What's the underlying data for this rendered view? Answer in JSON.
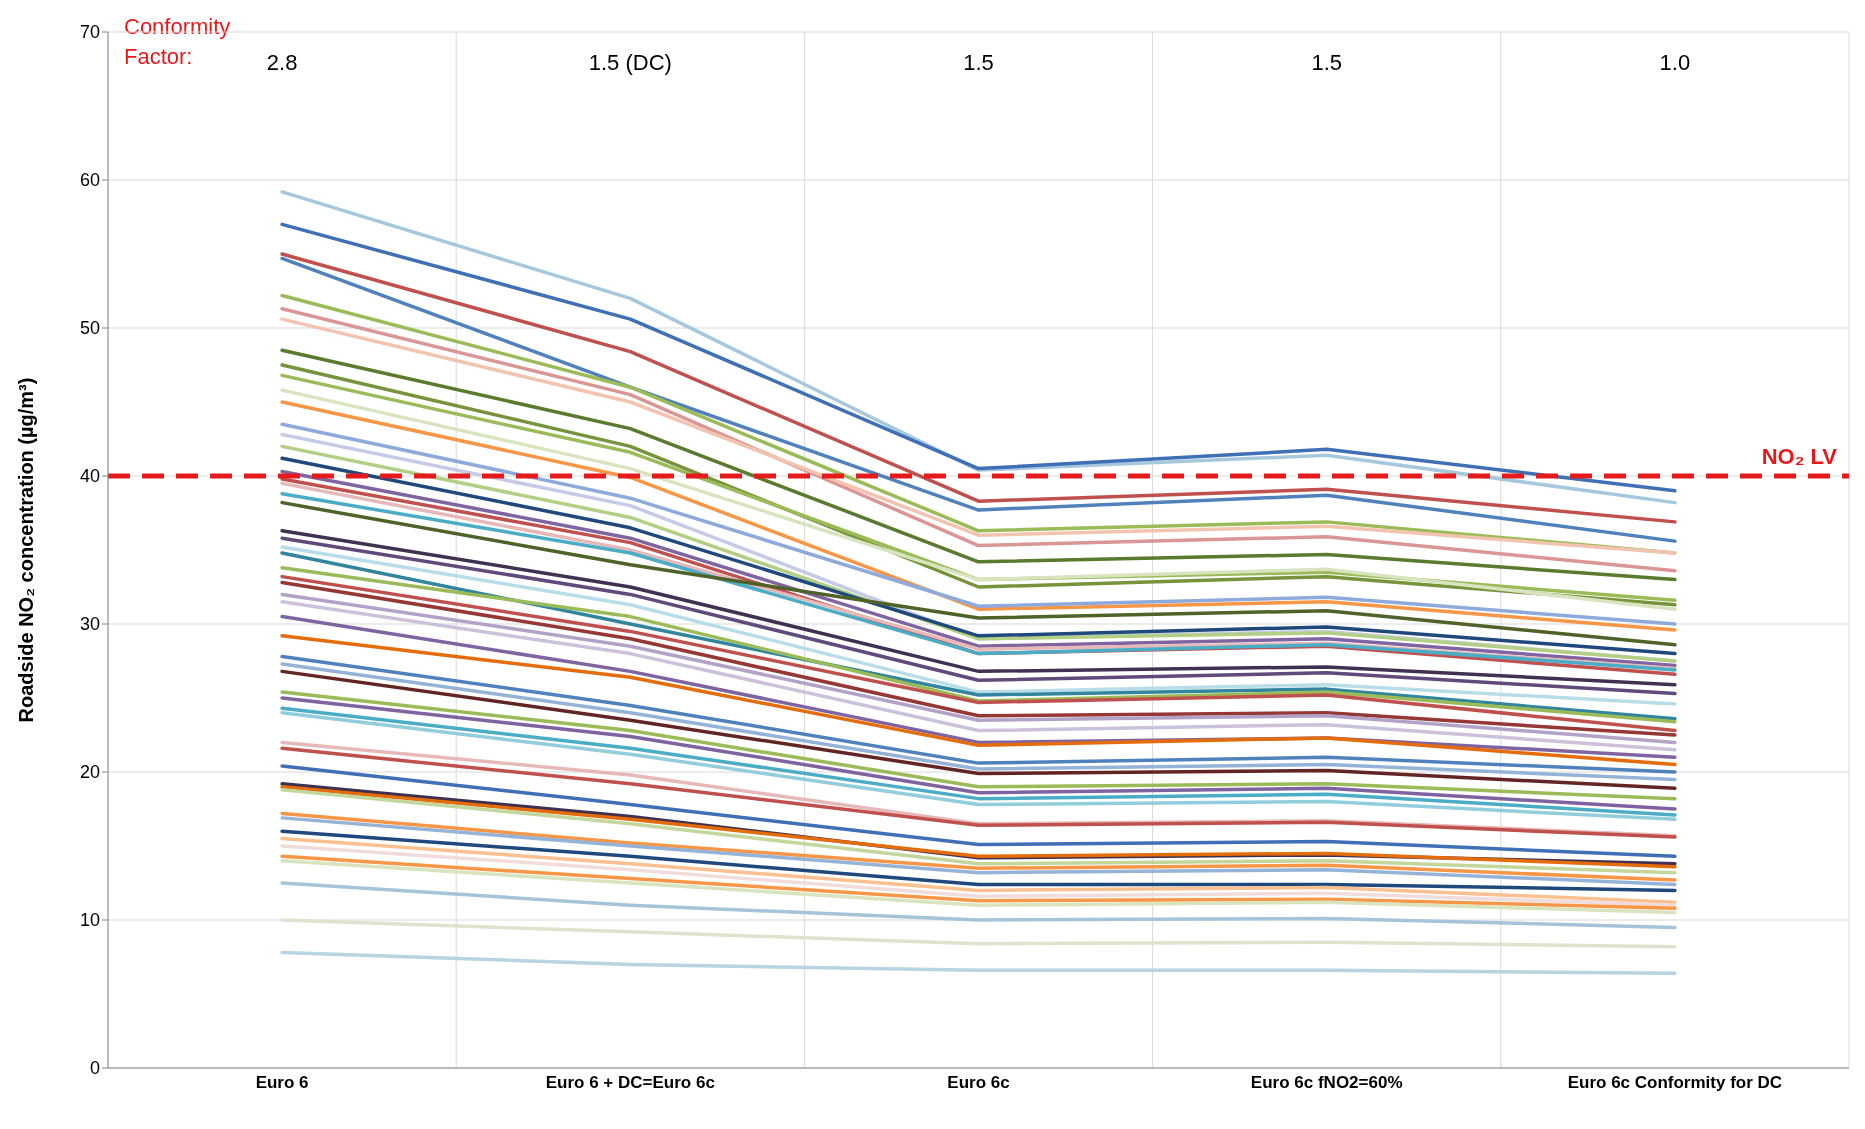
{
  "chart_data": {
    "type": "line",
    "categories": [
      "Euro 6",
      "Euro 6 + DC=Euro 6c",
      "Euro 6c",
      "Euro 6c  fNO2=60%",
      "Euro 6c Conformity for DC"
    ],
    "ylabel": "Roadside NO₂ concentration (µg/m³)",
    "ylim": [
      0,
      70
    ],
    "yticks": [
      0,
      10,
      20,
      30,
      40,
      50,
      60,
      70
    ],
    "grid": true,
    "ref_lines": [
      {
        "axis": "y",
        "value": 40,
        "label": "NO₂ LV",
        "color": "#e41a1c",
        "line_style": "dashed"
      }
    ],
    "annotations": [
      "Conformity Factor:",
      "2.8",
      "1.5 (DC)",
      "1.5",
      "1.5",
      "1.0"
    ],
    "series": [
      {
        "color": "#a5c8dc",
        "values": [
          59.2,
          52.0,
          40.4,
          41.4,
          38.2
        ]
      },
      {
        "color": "#3f6fb5",
        "values": [
          57.0,
          50.6,
          40.5,
          41.8,
          39.0
        ]
      },
      {
        "color": "#c0504d",
        "values": [
          55.0,
          48.4,
          38.3,
          39.1,
          36.9
        ]
      },
      {
        "color": "#4f81bd",
        "values": [
          54.7,
          46.0,
          37.7,
          38.7,
          35.6
        ]
      },
      {
        "color": "#9bbb59",
        "values": [
          52.2,
          46.0,
          36.3,
          36.9,
          34.8
        ]
      },
      {
        "color": "#d99694",
        "values": [
          51.3,
          45.5,
          35.3,
          35.9,
          33.6
        ]
      },
      {
        "color": "#f2c4b0",
        "values": [
          50.6,
          45.0,
          36.0,
          36.6,
          34.8
        ]
      },
      {
        "color": "#5a7a2e",
        "values": [
          48.5,
          43.2,
          34.2,
          34.7,
          33.0
        ]
      },
      {
        "color": "#77933c",
        "values": [
          47.5,
          42.0,
          32.5,
          33.2,
          31.3
        ]
      },
      {
        "color": "#9bbb59",
        "values": [
          46.8,
          41.6,
          33.0,
          33.5,
          31.6
        ]
      },
      {
        "color": "#d7e4bd",
        "values": [
          45.8,
          40.5,
          33.0,
          33.7,
          31.0
        ]
      },
      {
        "color": "#f79646",
        "values": [
          45.0,
          39.9,
          31.0,
          31.5,
          29.6
        ]
      },
      {
        "color": "#8ea9db",
        "values": [
          43.5,
          38.5,
          31.2,
          31.8,
          30.0
        ]
      },
      {
        "color": "#c5cbe6",
        "values": [
          42.8,
          38.0,
          29.0,
          29.5,
          27.5
        ]
      },
      {
        "color": "#b3cf84",
        "values": [
          42.0,
          37.2,
          29.0,
          29.4,
          27.5
        ]
      },
      {
        "color": "#1f497d",
        "values": [
          41.2,
          36.5,
          29.2,
          29.8,
          28.0
        ]
      },
      {
        "color": "#8064a2",
        "values": [
          40.3,
          35.8,
          28.5,
          29.0,
          27.2
        ]
      },
      {
        "color": "#c0504d",
        "values": [
          39.8,
          35.5,
          28.0,
          28.5,
          26.6
        ]
      },
      {
        "color": "#e6b9b8",
        "values": [
          39.5,
          35.0,
          28.3,
          28.7,
          27.0
        ]
      },
      {
        "color": "#4bacc6",
        "values": [
          38.8,
          34.8,
          28.0,
          28.6,
          26.9
        ]
      },
      {
        "color": "#4f6228",
        "values": [
          38.2,
          34.0,
          30.4,
          30.9,
          28.6
        ]
      },
      {
        "color": "#403152",
        "values": [
          36.3,
          32.5,
          26.8,
          27.1,
          25.9
        ]
      },
      {
        "color": "#604a7b",
        "values": [
          35.8,
          32.0,
          26.2,
          26.7,
          25.3
        ]
      },
      {
        "color": "#b7dee8",
        "values": [
          35.2,
          31.3,
          25.4,
          25.9,
          24.6
        ]
      },
      {
        "color": "#31859c",
        "values": [
          34.8,
          30.0,
          25.2,
          25.6,
          23.6
        ]
      },
      {
        "color": "#9bbb59",
        "values": [
          33.8,
          30.5,
          24.8,
          25.4,
          23.4
        ]
      },
      {
        "color": "#c0504d",
        "values": [
          33.2,
          29.5,
          24.7,
          25.2,
          22.8
        ]
      },
      {
        "color": "#953735",
        "values": [
          32.8,
          29.0,
          23.8,
          24.0,
          22.5
        ]
      },
      {
        "color": "#b3a2c7",
        "values": [
          32.0,
          28.5,
          23.5,
          23.8,
          22.0
        ]
      },
      {
        "color": "#ccc1da",
        "values": [
          31.5,
          28.0,
          22.8,
          23.2,
          21.5
        ]
      },
      {
        "color": "#8064a2",
        "values": [
          30.5,
          26.8,
          22.0,
          22.3,
          21.0
        ]
      },
      {
        "color": "#e46c0a",
        "values": [
          29.2,
          26.4,
          21.8,
          22.3,
          20.5
        ]
      },
      {
        "color": "#4f81bd",
        "values": [
          27.8,
          24.5,
          20.6,
          21.0,
          20.0
        ]
      },
      {
        "color": "#95b3d7",
        "values": [
          27.3,
          24.0,
          20.2,
          20.5,
          19.5
        ]
      },
      {
        "color": "#632523",
        "values": [
          26.8,
          23.5,
          19.9,
          20.1,
          18.9
        ]
      },
      {
        "color": "#9bbb59",
        "values": [
          25.4,
          22.8,
          19.0,
          19.2,
          18.2
        ]
      },
      {
        "color": "#7f62a0",
        "values": [
          25.0,
          22.4,
          18.6,
          18.9,
          17.5
        ]
      },
      {
        "color": "#4bacc6",
        "values": [
          24.3,
          21.6,
          18.2,
          18.5,
          17.1
        ]
      },
      {
        "color": "#92cddc",
        "values": [
          24.0,
          21.2,
          17.8,
          18.0,
          16.8
        ]
      },
      {
        "color": "#e6b9b8",
        "values": [
          22.0,
          19.8,
          16.5,
          16.7,
          15.7
        ]
      },
      {
        "color": "#c0504d",
        "values": [
          21.6,
          19.2,
          16.4,
          16.6,
          15.6
        ]
      },
      {
        "color": "#3f6fb5",
        "values": [
          20.4,
          17.8,
          15.1,
          15.3,
          14.3
        ]
      },
      {
        "color": "#403152",
        "values": [
          19.2,
          17.0,
          14.2,
          14.4,
          13.8
        ]
      },
      {
        "color": "#e46c0a",
        "values": [
          19.0,
          16.8,
          14.3,
          14.5,
          13.6
        ]
      },
      {
        "color": "#c3d69b",
        "values": [
          18.8,
          16.5,
          13.8,
          14.0,
          13.2
        ]
      },
      {
        "color": "#f79646",
        "values": [
          17.2,
          15.2,
          13.5,
          13.7,
          12.7
        ]
      },
      {
        "color": "#95b3d7",
        "values": [
          16.9,
          15.0,
          13.2,
          13.4,
          12.4
        ]
      },
      {
        "color": "#1f497d",
        "values": [
          16.0,
          14.3,
          12.4,
          12.4,
          12.0
        ]
      },
      {
        "color": "#fac090",
        "values": [
          15.5,
          13.8,
          12.0,
          12.2,
          11.2
        ]
      },
      {
        "color": "#f2dcdb",
        "values": [
          15.0,
          13.4,
          11.6,
          11.8,
          11.0
        ]
      },
      {
        "color": "#f79646",
        "values": [
          14.3,
          12.8,
          11.3,
          11.4,
          10.8
        ]
      },
      {
        "color": "#d7e4bd",
        "values": [
          14.0,
          12.5,
          11.0,
          11.2,
          10.5
        ]
      },
      {
        "color": "#a5c3d9",
        "values": [
          12.5,
          11.0,
          10.0,
          10.1,
          9.5
        ]
      },
      {
        "color": "#dde3cc",
        "values": [
          10.0,
          9.2,
          8.4,
          8.5,
          8.2
        ]
      },
      {
        "color": "#b7d4e0",
        "values": [
          7.8,
          7.0,
          6.6,
          6.6,
          6.4
        ]
      }
    ]
  }
}
